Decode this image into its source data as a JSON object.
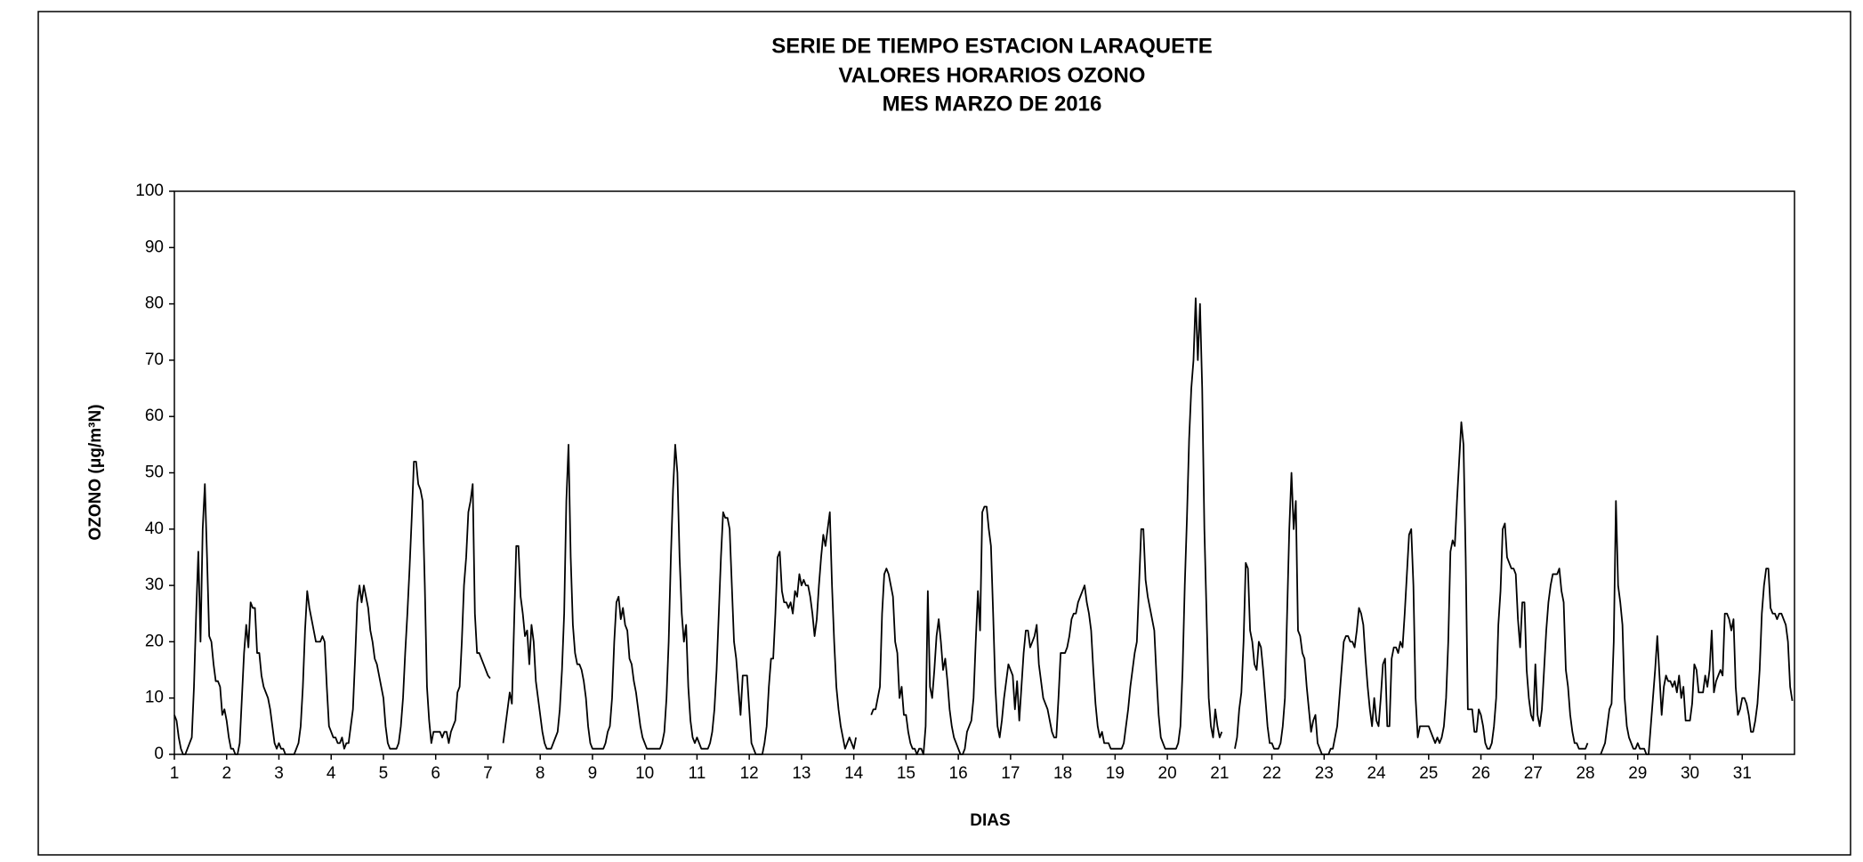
{
  "chart_data": {
    "type": "line",
    "title": [
      "SERIE DE TIEMPO ESTACION LARAQUETE",
      "VALORES HORARIOS OZONO",
      "MES MARZO DE 2016"
    ],
    "y_label": "OZONO (μg/m³N)",
    "x_label": "DIAS",
    "ylim": [
      0,
      100
    ],
    "yticks": [
      0,
      10,
      20,
      30,
      40,
      50,
      60,
      70,
      80,
      90,
      100
    ],
    "color": "#000000",
    "categories": [
      "1",
      null,
      null,
      null,
      null,
      null,
      null,
      null,
      null,
      null,
      null,
      null,
      null,
      null,
      null,
      null,
      null,
      null,
      null,
      null,
      null,
      null,
      null,
      null,
      "2",
      null,
      null,
      null,
      null,
      null,
      null,
      null,
      null,
      null,
      null,
      null,
      null,
      null,
      null,
      null,
      null,
      null,
      null,
      null,
      null,
      null,
      null,
      null,
      "3",
      null,
      null,
      null,
      null,
      null,
      null,
      null,
      null,
      null,
      null,
      null,
      null,
      null,
      null,
      null,
      null,
      null,
      null,
      null,
      null,
      null,
      null,
      null,
      "4",
      null,
      null,
      null,
      null,
      null,
      null,
      null,
      null,
      null,
      null,
      null,
      null,
      null,
      null,
      null,
      null,
      null,
      null,
      null,
      null,
      null,
      null,
      null,
      "5",
      null,
      null,
      null,
      null,
      null,
      null,
      null,
      null,
      null,
      null,
      null,
      null,
      null,
      null,
      null,
      null,
      null,
      null,
      null,
      null,
      null,
      null,
      null,
      "6",
      null,
      null,
      null,
      null,
      null,
      null,
      null,
      null,
      null,
      null,
      null,
      null,
      null,
      null,
      null,
      null,
      null,
      null,
      null,
      null,
      null,
      null,
      null,
      "7",
      null,
      null,
      null,
      null,
      null,
      null,
      null,
      null,
      null,
      null,
      null,
      null,
      null,
      null,
      null,
      null,
      null,
      null,
      null,
      null,
      null,
      null,
      null,
      "8",
      null,
      null,
      null,
      null,
      null,
      null,
      null,
      null,
      null,
      null,
      null,
      null,
      null,
      null,
      null,
      null,
      null,
      null,
      null,
      null,
      null,
      null,
      null,
      "9",
      null,
      null,
      null,
      null,
      null,
      null,
      null,
      null,
      null,
      null,
      null,
      null,
      null,
      null,
      null,
      null,
      null,
      null,
      null,
      null,
      null,
      null,
      null,
      "10",
      null,
      null,
      null,
      null,
      null,
      null,
      null,
      null,
      null,
      null,
      null,
      null,
      null,
      null,
      null,
      null,
      null,
      null,
      null,
      null,
      null,
      null,
      null,
      "11",
      null,
      null,
      null,
      null,
      null,
      null,
      null,
      null,
      null,
      null,
      null,
      null,
      null,
      null,
      null,
      null,
      null,
      null,
      null,
      null,
      null,
      null,
      null,
      "12",
      null,
      null,
      null,
      null,
      null,
      null,
      null,
      null,
      null,
      null,
      null,
      null,
      null,
      null,
      null,
      null,
      null,
      null,
      null,
      null,
      null,
      null,
      null,
      "13",
      null,
      null,
      null,
      null,
      null,
      null,
      null,
      null,
      null,
      null,
      null,
      null,
      null,
      null,
      null,
      null,
      null,
      null,
      null,
      null,
      null,
      null,
      null,
      "14",
      null,
      null,
      null,
      null,
      null,
      null,
      null,
      null,
      null,
      null,
      null,
      null,
      null,
      null,
      null,
      null,
      null,
      null,
      null,
      null,
      null,
      null,
      null,
      "15",
      null,
      null,
      null,
      null,
      null,
      null,
      null,
      null,
      null,
      null,
      null,
      null,
      null,
      null,
      null,
      null,
      null,
      null,
      null,
      null,
      null,
      null,
      null,
      "16",
      null,
      null,
      null,
      null,
      null,
      null,
      null,
      null,
      null,
      null,
      null,
      null,
      null,
      null,
      null,
      null,
      null,
      null,
      null,
      null,
      null,
      null,
      null,
      "17",
      null,
      null,
      null,
      null,
      null,
      null,
      null,
      null,
      null,
      null,
      null,
      null,
      null,
      null,
      null,
      null,
      null,
      null,
      null,
      null,
      null,
      null,
      null,
      "18",
      null,
      null,
      null,
      null,
      null,
      null,
      null,
      null,
      null,
      null,
      null,
      null,
      null,
      null,
      null,
      null,
      null,
      null,
      null,
      null,
      null,
      null,
      null,
      "19",
      null,
      null,
      null,
      null,
      null,
      null,
      null,
      null,
      null,
      null,
      null,
      null,
      null,
      null,
      null,
      null,
      null,
      null,
      null,
      null,
      null,
      null,
      null,
      "20",
      null,
      null,
      null,
      null,
      null,
      null,
      null,
      null,
      null,
      null,
      null,
      null,
      null,
      null,
      null,
      null,
      null,
      null,
      null,
      null,
      null,
      null,
      null,
      "21",
      null,
      null,
      null,
      null,
      null,
      null,
      null,
      null,
      null,
      null,
      null,
      null,
      null,
      null,
      null,
      null,
      null,
      null,
      null,
      null,
      null,
      null,
      null,
      "22",
      null,
      null,
      null,
      null,
      null,
      null,
      null,
      null,
      null,
      null,
      null,
      null,
      null,
      null,
      null,
      null,
      null,
      null,
      null,
      null,
      null,
      null,
      null,
      "23",
      null,
      null,
      null,
      null,
      null,
      null,
      null,
      null,
      null,
      null,
      null,
      null,
      null,
      null,
      null,
      null,
      null,
      null,
      null,
      null,
      null,
      null,
      null,
      "24",
      null,
      null,
      null,
      null,
      null,
      null,
      null,
      null,
      null,
      null,
      null,
      null,
      null,
      null,
      null,
      null,
      null,
      null,
      null,
      null,
      null,
      null,
      null,
      "25",
      null,
      null,
      null,
      null,
      null,
      null,
      null,
      null,
      null,
      null,
      null,
      null,
      null,
      null,
      null,
      null,
      null,
      null,
      null,
      null,
      null,
      null,
      null,
      "26",
      null,
      null,
      null,
      null,
      null,
      null,
      null,
      null,
      null,
      null,
      null,
      null,
      null,
      null,
      null,
      null,
      null,
      null,
      null,
      null,
      null,
      null,
      null,
      "27",
      null,
      null,
      null,
      null,
      null,
      null,
      null,
      null,
      null,
      null,
      null,
      null,
      null,
      null,
      null,
      null,
      null,
      null,
      null,
      null,
      null,
      null,
      null,
      "28",
      null,
      null,
      null,
      null,
      null,
      null,
      null,
      null,
      null,
      null,
      null,
      null,
      null,
      null,
      null,
      null,
      null,
      null,
      null,
      null,
      null,
      null,
      null,
      "29",
      null,
      null,
      null,
      null,
      null,
      null,
      null,
      null,
      null,
      null,
      null,
      null,
      null,
      null,
      null,
      null,
      null,
      null,
      null,
      null,
      null,
      null,
      null,
      "30",
      null,
      null,
      null,
      null,
      null,
      null,
      null,
      null,
      null,
      null,
      null,
      null,
      null,
      null,
      null,
      null,
      null,
      null,
      null,
      null,
      null,
      null,
      null,
      "31",
      null,
      null,
      null,
      null,
      null,
      null,
      null,
      null,
      null,
      null,
      null,
      null,
      null,
      null,
      null,
      null,
      null,
      null,
      null,
      null,
      null,
      null,
      null
    ],
    "values": [
      7,
      6,
      3,
      1,
      0,
      0,
      1,
      2,
      3,
      12,
      25,
      36,
      20,
      40,
      48,
      35,
      21,
      20,
      16,
      13,
      13,
      12,
      7,
      8,
      6,
      3,
      1,
      1,
      0,
      0,
      2,
      10,
      18,
      23,
      19,
      27,
      26,
      26,
      18,
      18,
      14,
      12,
      11,
      10,
      8,
      5,
      2,
      1,
      2,
      1,
      1,
      0,
      0,
      0,
      0,
      0,
      1,
      2,
      5,
      12,
      22,
      29,
      26,
      24,
      22,
      20,
      20,
      20,
      21,
      20,
      12,
      5,
      4,
      3,
      3,
      2,
      2,
      3,
      1,
      2,
      2,
      5,
      8,
      17,
      27,
      30,
      27,
      30,
      28,
      26,
      22,
      20,
      17,
      16,
      14,
      12,
      10,
      5,
      2,
      1,
      1,
      1,
      1,
      2,
      5,
      10,
      18,
      25,
      33,
      42,
      52,
      52,
      48,
      47,
      45,
      30,
      12,
      6,
      2,
      4,
      4,
      4,
      4,
      3,
      4,
      4,
      2,
      4,
      5,
      6,
      11,
      12,
      20,
      30,
      35,
      43,
      45,
      48,
      25,
      18,
      18,
      17,
      16,
      15,
      14,
      13.5,
      null,
      null,
      null,
      null,
      null,
      2,
      5,
      8,
      11,
      9,
      23,
      37,
      37,
      28,
      25,
      21,
      22,
      16,
      23,
      20,
      13,
      10,
      7,
      4,
      2,
      1,
      1,
      1,
      2,
      3,
      4,
      8,
      15,
      25,
      45,
      55,
      35,
      23,
      18,
      16,
      16,
      15,
      13,
      10,
      5,
      2,
      1,
      1,
      1,
      1,
      1,
      1,
      2,
      4,
      5,
      10,
      20,
      27,
      28,
      24,
      26,
      23,
      22,
      17,
      16,
      13,
      11,
      8,
      5,
      3,
      2,
      1,
      1,
      1,
      1,
      1,
      1,
      1,
      2,
      4,
      10,
      20,
      35,
      47,
      55,
      50,
      35,
      25,
      20,
      23,
      12,
      6,
      3,
      2,
      3,
      2,
      1,
      1,
      1,
      1,
      2,
      4,
      8,
      15,
      25,
      35,
      43,
      42,
      42,
      40,
      30,
      20,
      17,
      12,
      7,
      14,
      14,
      14,
      8,
      2,
      1,
      0,
      0,
      0,
      0,
      2,
      5,
      12,
      17,
      17,
      25,
      35,
      36,
      29,
      27,
      27,
      26,
      27,
      25,
      29,
      28,
      32,
      30,
      31,
      30,
      30,
      28,
      25,
      21,
      24,
      30,
      35,
      39,
      37,
      40,
      43,
      30,
      20,
      12,
      8,
      5,
      3,
      1,
      2,
      3,
      2,
      1,
      3,
      null,
      null,
      null,
      null,
      null,
      null,
      7,
      8,
      8,
      10,
      12,
      25,
      32,
      33,
      32,
      30,
      28,
      20,
      18,
      10,
      12,
      7,
      7,
      4,
      2,
      1,
      1,
      0,
      1,
      1,
      0,
      5,
      29,
      12,
      10,
      15,
      21,
      24,
      20,
      15,
      17,
      13,
      8,
      5,
      3,
      2,
      1,
      0,
      0,
      1,
      4,
      5,
      6,
      10,
      20,
      29,
      22,
      43,
      44,
      44,
      40,
      37,
      25,
      12,
      5,
      3,
      6,
      10,
      13,
      16,
      15,
      14,
      8,
      13,
      6,
      12,
      18,
      22,
      22,
      19,
      20,
      21,
      23,
      16,
      13,
      10,
      9,
      8,
      6,
      4,
      3,
      3,
      10,
      18,
      18,
      18,
      19,
      21,
      24,
      25,
      25,
      27,
      28,
      29,
      30,
      27,
      25,
      22,
      15,
      9,
      5,
      3,
      4,
      2,
      2,
      2,
      1,
      1,
      1,
      1,
      1,
      1,
      2,
      5,
      8,
      12,
      15,
      18,
      20,
      30,
      40,
      40,
      31,
      28,
      26,
      24,
      22,
      14,
      7,
      3,
      2,
      1,
      1,
      1,
      1,
      1,
      1,
      2,
      5,
      15,
      30,
      42,
      56,
      65,
      70,
      81,
      70,
      80,
      65,
      40,
      25,
      10,
      5,
      3,
      8,
      5,
      3,
      4,
      null,
      null,
      null,
      null,
      null,
      1,
      3,
      8,
      11,
      20,
      34,
      33,
      22,
      20,
      16,
      15,
      20,
      19,
      15,
      10,
      5,
      2,
      2,
      1,
      1,
      1,
      2,
      5,
      10,
      25,
      40,
      50,
      40,
      45,
      22,
      21,
      18,
      17,
      12,
      8,
      4,
      6,
      7,
      2,
      1,
      0,
      0,
      0,
      0,
      1,
      1,
      3,
      5,
      10,
      15,
      20,
      21,
      21,
      20,
      20,
      19,
      22,
      26,
      25,
      23,
      17,
      12,
      8,
      5,
      10,
      6,
      5,
      10,
      16,
      17,
      5,
      5,
      17,
      19,
      19,
      18,
      20,
      19,
      25,
      32,
      39,
      40,
      30,
      10,
      3,
      5,
      5,
      5,
      5,
      5,
      4,
      3,
      2,
      3,
      2,
      3,
      5,
      10,
      20,
      36,
      38,
      37,
      45,
      52,
      59,
      55,
      35,
      8,
      8,
      8,
      4,
      4,
      8,
      7,
      5,
      2,
      1,
      1,
      2,
      5,
      10,
      23,
      29,
      40,
      41,
      35,
      34,
      33,
      33,
      32,
      24,
      19,
      27,
      27,
      15,
      10,
      7,
      6,
      16,
      7,
      5,
      8,
      15,
      22,
      27,
      30,
      32,
      32,
      32,
      33,
      29,
      27,
      15,
      12,
      7,
      4,
      2,
      2,
      1,
      1,
      1,
      1,
      2,
      null,
      null,
      null,
      null,
      null,
      0,
      1,
      2,
      5,
      8,
      9,
      20,
      45,
      30,
      27,
      23,
      10,
      5,
      3,
      2,
      1,
      1,
      2,
      1,
      1,
      1,
      0,
      0,
      5,
      10,
      15,
      21,
      14,
      7,
      12,
      14,
      13,
      13,
      12,
      13,
      11,
      14,
      10,
      12,
      6,
      6,
      6,
      9,
      16,
      15,
      11,
      11,
      11,
      14,
      12,
      15,
      22,
      11,
      13,
      14,
      15,
      14,
      25,
      25,
      24,
      22,
      24,
      12,
      7,
      8,
      10,
      10,
      9,
      7,
      4,
      4,
      6,
      9,
      15,
      25,
      30,
      33,
      33,
      26,
      25,
      25,
      24,
      25,
      25,
      24,
      23,
      20,
      12,
      9.5
    ]
  }
}
